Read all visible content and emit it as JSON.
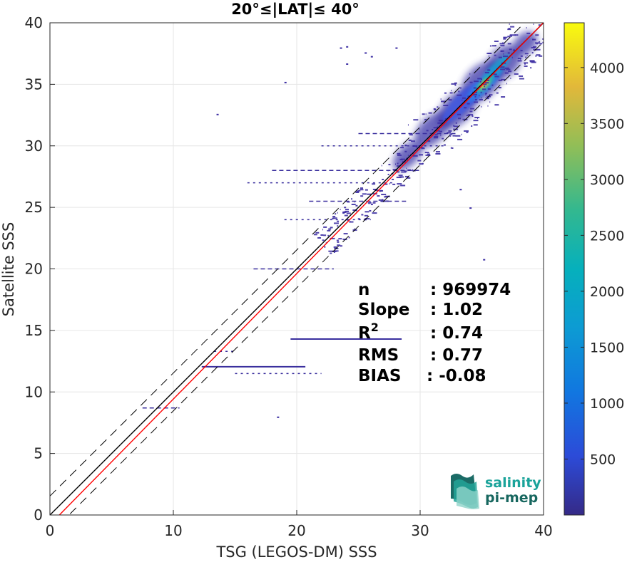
{
  "chart_data": {
    "type": "heatmap",
    "title": "20°≤|LAT|≤ 40°",
    "xlabel": "TSG (LEGOS-DM) SSS",
    "ylabel": "Satellite SSS",
    "xlim": [
      0,
      40
    ],
    "ylim": [
      0,
      40
    ],
    "xticks": [
      "0",
      "10",
      "20",
      "30",
      "40"
    ],
    "yticks": [
      "0",
      "5",
      "10",
      "15",
      "20",
      "25",
      "30",
      "35",
      "40"
    ],
    "grid": true,
    "colorbar": {
      "ticks": [
        "500",
        "1000",
        "1500",
        "2000",
        "2500",
        "3000",
        "3500",
        "4000"
      ],
      "tick_values": [
        500,
        1000,
        1500,
        2000,
        2500,
        3000,
        3500,
        4000
      ],
      "range": [
        0,
        4400
      ],
      "colormap": "parula"
    },
    "density_peak": {
      "x": 35.2,
      "y": 35.0,
      "count": 4400
    },
    "lines": [
      {
        "name": "one-to-one",
        "slope": 1.0,
        "intercept": 0.0,
        "color": "#000000",
        "style": "solid"
      },
      {
        "name": "regression",
        "slope": 1.02,
        "intercept": -0.78,
        "color": "#ff0000",
        "style": "solid"
      },
      {
        "name": "upper-bound",
        "slope": 1.0,
        "intercept": 1.54,
        "color": "#000000",
        "style": "dashed"
      },
      {
        "name": "lower-bound",
        "slope": 1.0,
        "intercept": -1.54,
        "color": "#000000",
        "style": "dashed"
      }
    ],
    "stats": [
      {
        "label": "n",
        "value": ": 969974"
      },
      {
        "label": "Slope",
        "value": ": 1.02"
      },
      {
        "label": "R",
        "sup": "2",
        "value": ": 0.74"
      },
      {
        "label": "RMS",
        "value": ": 0.77"
      },
      {
        "label": "BIAS",
        "value": ": -0.08"
      }
    ],
    "horizontal_streaks": [
      {
        "x0": 19.5,
        "x1": 28.5,
        "y": 14.3
      },
      {
        "x0": 12.3,
        "x1": 20.7,
        "y": 12.05
      },
      {
        "x0": 15.0,
        "x1": 22.0,
        "y": 11.5
      },
      {
        "x0": 16.5,
        "x1": 23.0,
        "y": 20.0
      },
      {
        "x0": 16.0,
        "x1": 28.0,
        "y": 27.0
      },
      {
        "x0": 18.0,
        "x1": 30.0,
        "y": 28.0
      },
      {
        "x0": 22.0,
        "x1": 32.0,
        "y": 30.0
      },
      {
        "x0": 25.0,
        "x1": 33.0,
        "y": 31.0
      },
      {
        "x0": 13.3,
        "x1": 14.9,
        "y": 13.3
      },
      {
        "x0": 7.5,
        "x1": 10.5,
        "y": 8.7
      },
      {
        "x0": 19.0,
        "x1": 26.0,
        "y": 24.0
      },
      {
        "x0": 21.0,
        "x1": 29.0,
        "y": 25.5
      }
    ]
  },
  "logo": {
    "line1": "salinity",
    "line2": "pi-mep",
    "color": "#1aa39a"
  }
}
